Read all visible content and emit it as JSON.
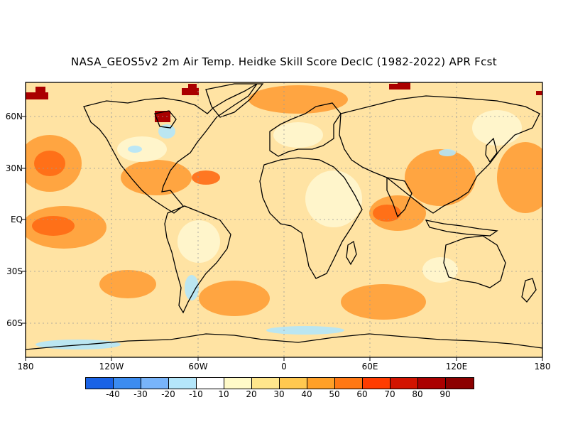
{
  "title": "NASA_GEOS5v2 2m Air Temp. Heidke Skill Score DecIC (1982-2022) APR Fcst",
  "lat_labels": [
    "60N",
    "30N",
    "EQ",
    "30S",
    "60S"
  ],
  "lon_labels": [
    "180",
    "120W",
    "60W",
    "0",
    "60E",
    "120E",
    "180"
  ],
  "colorbar": {
    "labels": [
      "-40",
      "-30",
      "-20",
      "-10",
      "10",
      "20",
      "30",
      "40",
      "50",
      "60",
      "70",
      "80",
      "90"
    ],
    "colors": [
      "#1a63e6",
      "#3c8cf0",
      "#78b4fa",
      "#b4e6fa",
      "#ffffff",
      "#fffac8",
      "#ffe68c",
      "#ffc850",
      "#ffa028",
      "#ff7814",
      "#ff3c00",
      "#d21400",
      "#aa0000",
      "#8c0000"
    ]
  },
  "regions": {
    "background": "#ffe3a3",
    "warm_core": "#ff9a30",
    "hot_spot": "#ff6a14",
    "extreme": "#aa0000",
    "cool": "#b4e6fa",
    "land_pale": "#fff6cf"
  }
}
